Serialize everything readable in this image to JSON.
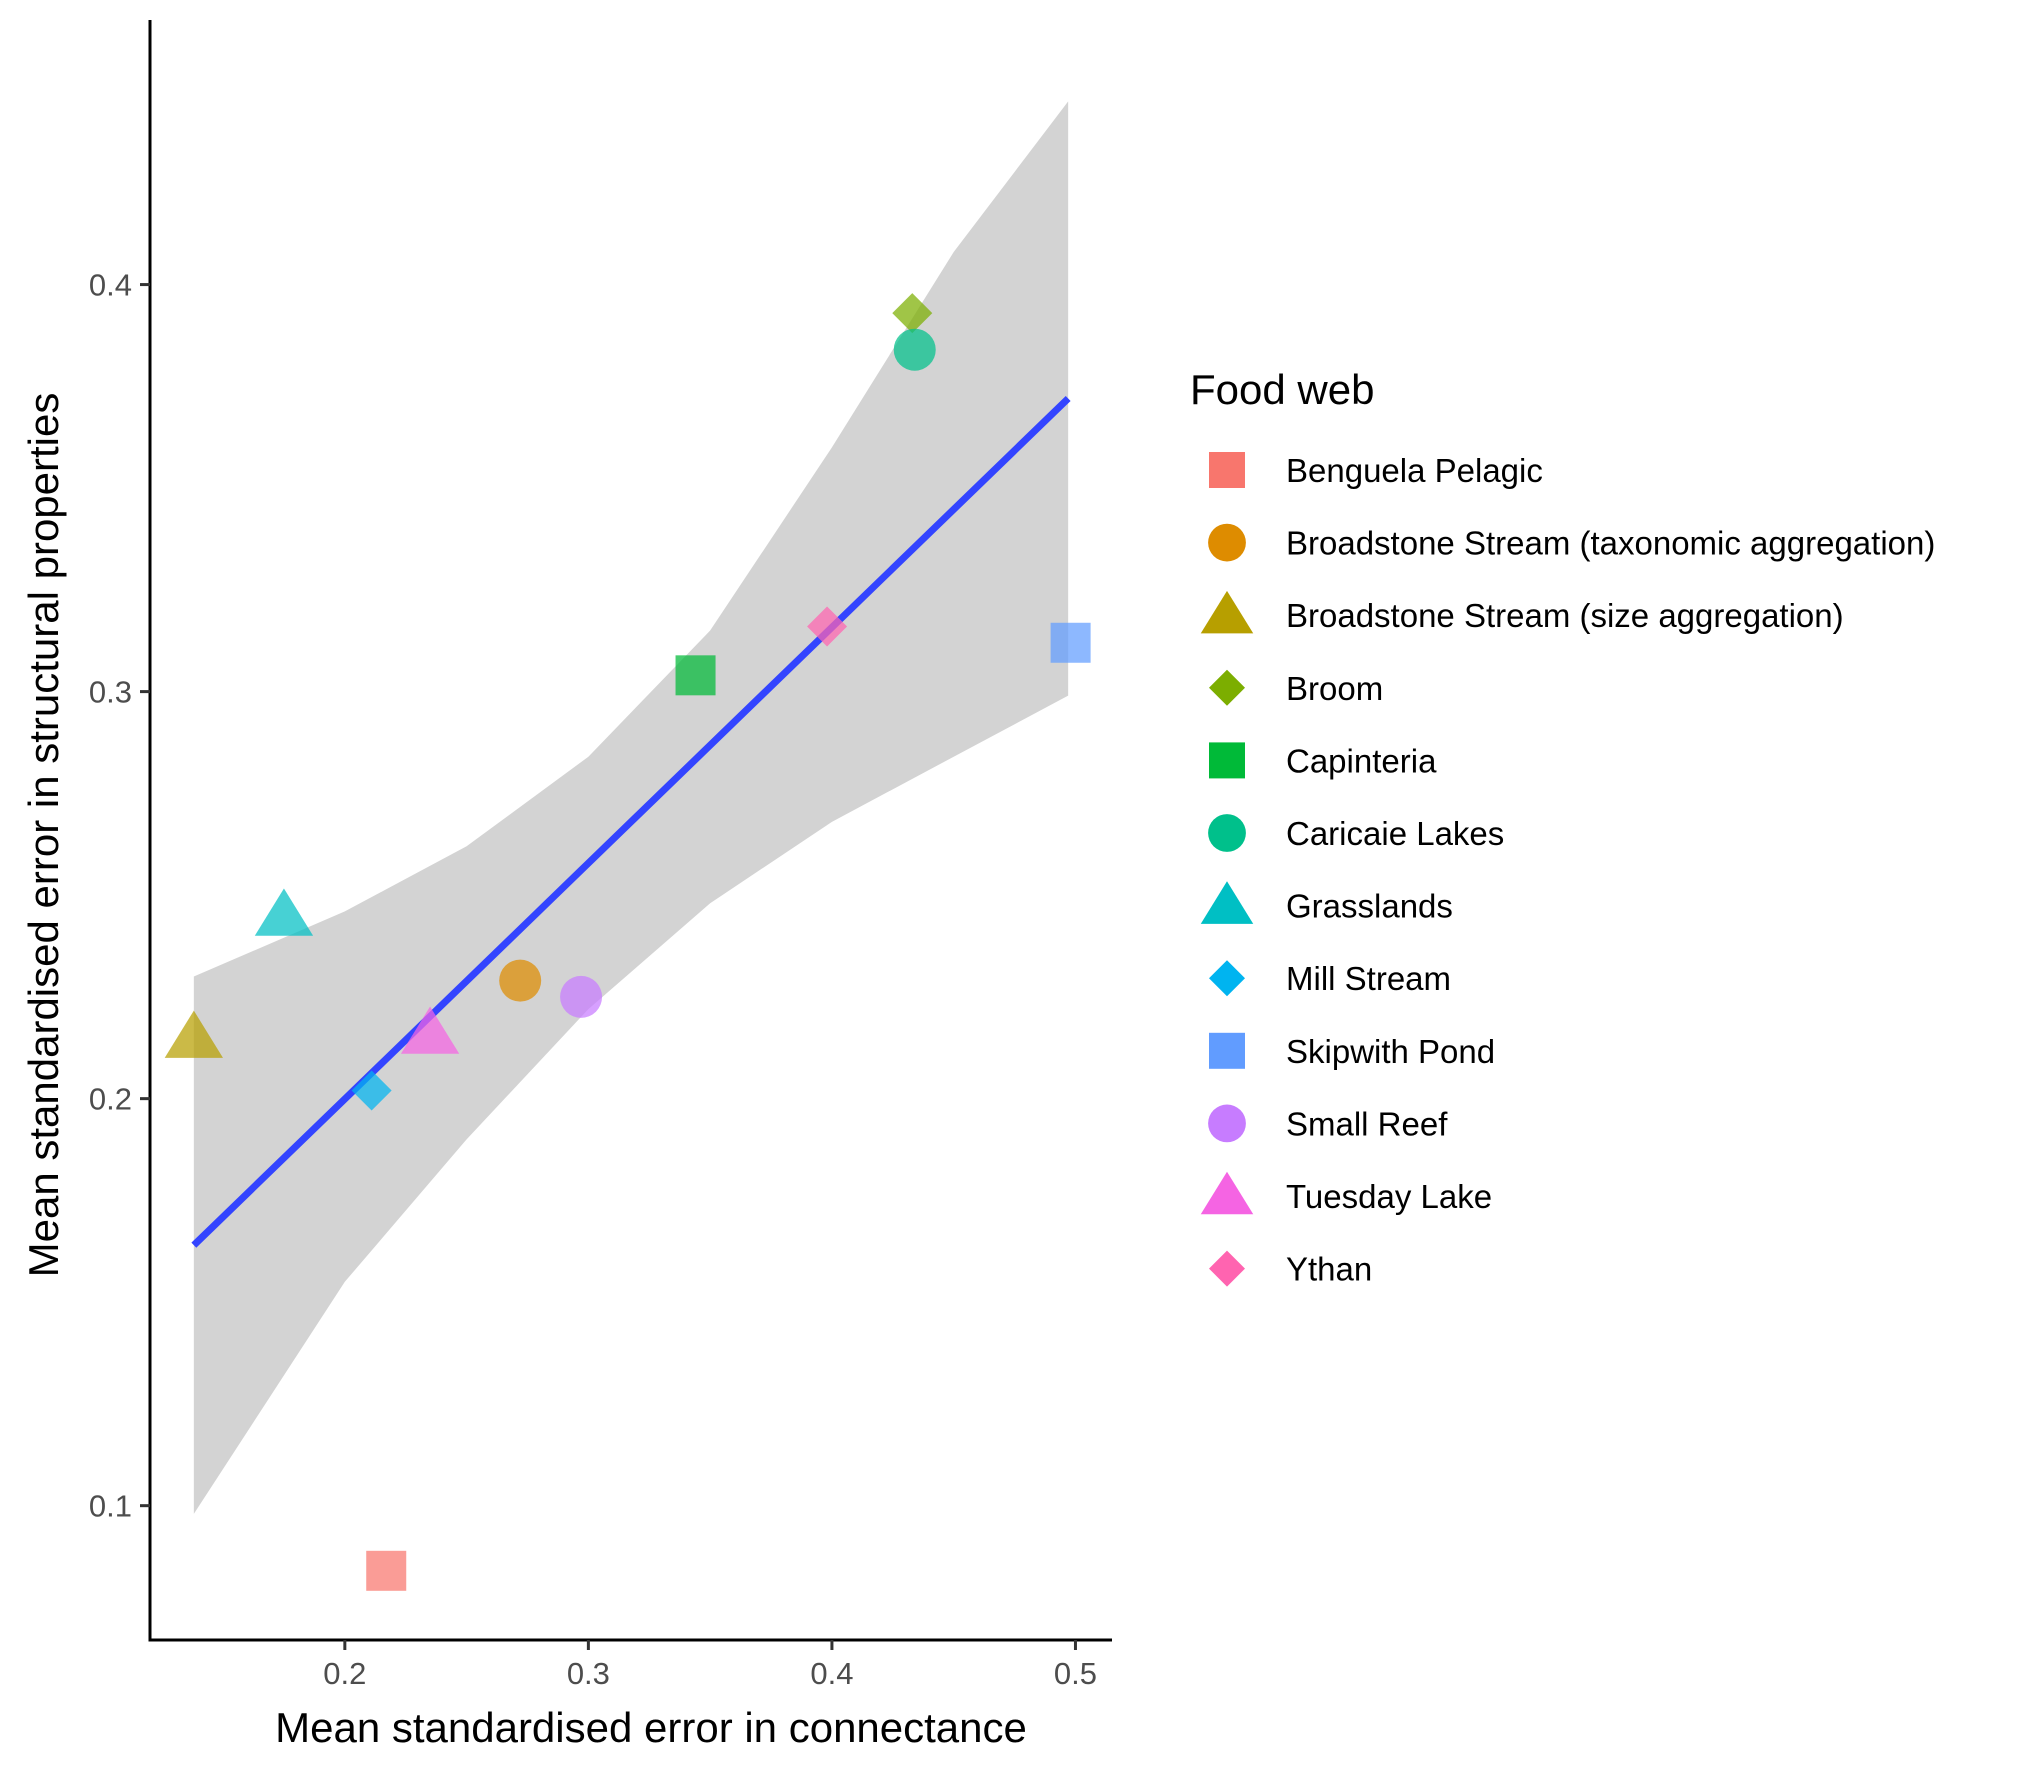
{
  "chart_data": {
    "type": "scatter",
    "title": "",
    "xlabel": "Mean standardised error in connectance",
    "ylabel": "Mean standardised error in structural properties",
    "xlim": [
      0.12,
      0.515
    ],
    "ylim": [
      0.067,
      0.465
    ],
    "x_ticks": [
      0.2,
      0.3,
      0.4,
      0.5
    ],
    "y_ticks": [
      0.1,
      0.2,
      0.3,
      0.4
    ],
    "x_tick_labels": [
      "0.2",
      "0.3",
      "0.4",
      "0.5"
    ],
    "y_tick_labels": [
      "0.1",
      "0.2",
      "0.3",
      "0.4"
    ],
    "grid": false,
    "legend": {
      "title": "Food web",
      "position": "right",
      "entries": [
        {
          "label": "Benguela Pelagic",
          "shape": "square",
          "color": "#F8766D"
        },
        {
          "label": "Broadstone Stream (taxonomic aggregation)",
          "shape": "circle",
          "color": "#DE8C00"
        },
        {
          "label": "Broadstone Stream (size aggregation)",
          "shape": "triangle",
          "color": "#B79F00"
        },
        {
          "label": "Broom",
          "shape": "diamond",
          "color": "#7CAE00"
        },
        {
          "label": "Capinteria",
          "shape": "square",
          "color": "#00BA38"
        },
        {
          "label": "Caricaie Lakes",
          "shape": "circle",
          "color": "#00C08B"
        },
        {
          "label": "Grasslands",
          "shape": "triangle",
          "color": "#00BFC4"
        },
        {
          "label": "Mill Stream",
          "shape": "diamond",
          "color": "#00B4F0"
        },
        {
          "label": "Skipwith Pond",
          "shape": "square",
          "color": "#619CFF"
        },
        {
          "label": "Small Reef",
          "shape": "circle",
          "color": "#C77CFF"
        },
        {
          "label": "Tuesday Lake",
          "shape": "triangle",
          "color": "#F564E3"
        },
        {
          "label": "Ythan",
          "shape": "diamond",
          "color": "#FF64B0"
        }
      ]
    },
    "points": [
      {
        "name": "Benguela Pelagic",
        "x": 0.217,
        "y": 0.084
      },
      {
        "name": "Broadstone Stream (taxonomic aggregation)",
        "x": 0.272,
        "y": 0.229
      },
      {
        "name": "Broadstone Stream (size aggregation)",
        "x": 0.138,
        "y": 0.215
      },
      {
        "name": "Broom",
        "x": 0.433,
        "y": 0.393
      },
      {
        "name": "Capinteria",
        "x": 0.344,
        "y": 0.304
      },
      {
        "name": "Caricaie Lakes",
        "x": 0.434,
        "y": 0.384
      },
      {
        "name": "Grasslands",
        "x": 0.175,
        "y": 0.245
      },
      {
        "name": "Mill Stream",
        "x": 0.211,
        "y": 0.202
      },
      {
        "name": "Skipwith Pond",
        "x": 0.498,
        "y": 0.312
      },
      {
        "name": "Small Reef",
        "x": 0.297,
        "y": 0.225
      },
      {
        "name": "Tuesday Lake",
        "x": 0.235,
        "y": 0.216
      },
      {
        "name": "Ythan",
        "x": 0.398,
        "y": 0.316
      }
    ],
    "fit_line": {
      "color": "#3344FF",
      "x": [
        0.138,
        0.497
      ],
      "y": [
        0.164,
        0.372
      ]
    },
    "confidence_band": {
      "color": "#D3D3D3",
      "x": [
        0.138,
        0.2,
        0.25,
        0.3,
        0.35,
        0.4,
        0.45,
        0.497
      ],
      "lower": [
        0.098,
        0.155,
        0.19,
        0.222,
        0.248,
        0.268,
        0.284,
        0.299
      ],
      "upper": [
        0.23,
        0.246,
        0.262,
        0.284,
        0.315,
        0.36,
        0.408,
        0.445
      ]
    }
  }
}
